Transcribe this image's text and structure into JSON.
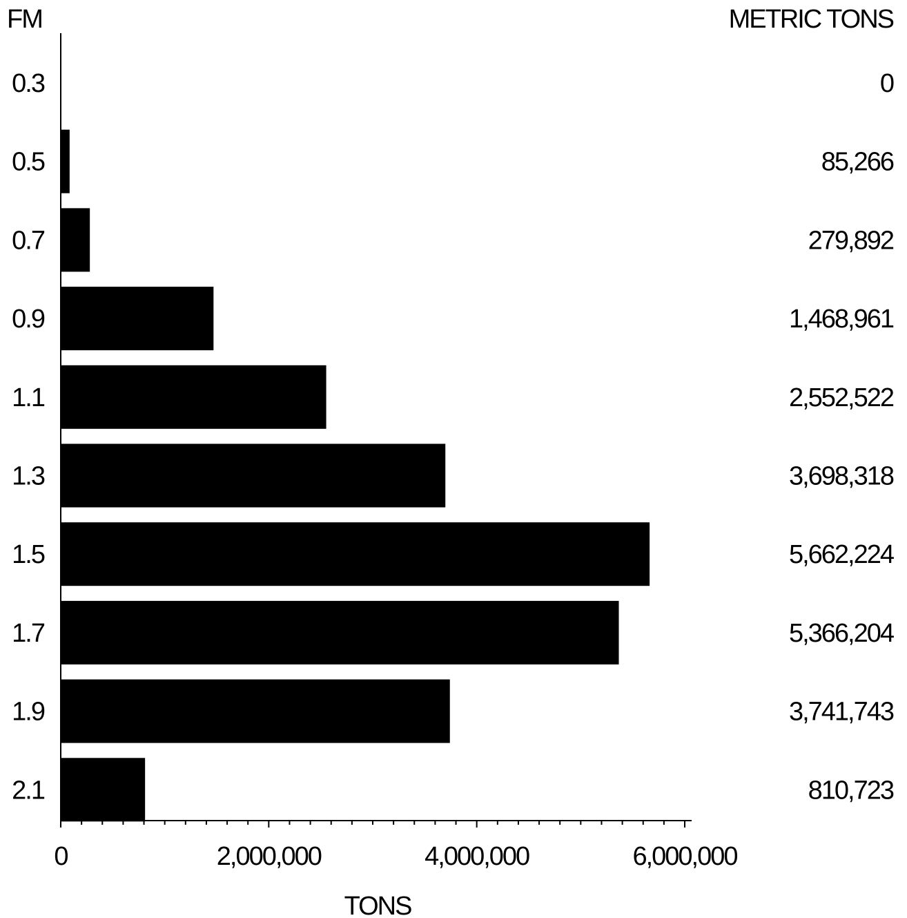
{
  "chart_data": {
    "type": "bar",
    "orientation": "horizontal",
    "category_header": "FM",
    "value_header": "METRIC TONS",
    "xlabel": "TONS",
    "categories": [
      "0.3",
      "0.5",
      "0.7",
      "0.9",
      "1.1",
      "1.3",
      "1.5",
      "1.7",
      "1.9",
      "2.1"
    ],
    "values": [
      0,
      85266,
      279892,
      1468961,
      2552522,
      3698318,
      5662224,
      5366204,
      3741743,
      810723
    ],
    "value_labels": [
      "0",
      "85,266",
      "279,892",
      "1,468,961",
      "2,552,522",
      "3,698,318",
      "5,662,224",
      "5,366,204",
      "3,741,743",
      "810,723"
    ],
    "xlim": [
      0,
      6000000
    ],
    "major_ticks": [
      0,
      2000000,
      4000000,
      6000000
    ],
    "major_tick_labels": [
      "0",
      "2,000,000",
      "4,000,000",
      "6,000,000"
    ],
    "minor_tick_step": 200000,
    "grid": false,
    "legend": "none",
    "bar_color": "#000000"
  }
}
